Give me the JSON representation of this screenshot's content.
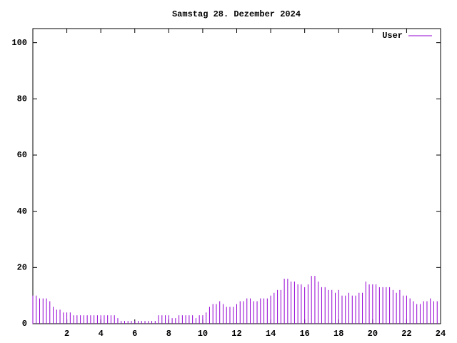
{
  "chart_data": {
    "type": "impulses",
    "title": "Samstag 28. Dezember 2024",
    "x": [
      0,
      0.2,
      0.4,
      0.6,
      0.8,
      1,
      1.2,
      1.4,
      1.6,
      1.8,
      2,
      2.2,
      2.4,
      2.6,
      2.8,
      3,
      3.2,
      3.4,
      3.6,
      3.8,
      4,
      4.2,
      4.4,
      4.6,
      4.8,
      5,
      5.2,
      5.4,
      5.6,
      5.8,
      6,
      6.2,
      6.4,
      6.6,
      6.8,
      7,
      7.2,
      7.4,
      7.6,
      7.8,
      8,
      8.2,
      8.4,
      8.6,
      8.8,
      9,
      9.2,
      9.4,
      9.6,
      9.8,
      10,
      10.2,
      10.4,
      10.6,
      10.8,
      11,
      11.2,
      11.4,
      11.6,
      11.8,
      12,
      12.2,
      12.4,
      12.6,
      12.8,
      13,
      13.2,
      13.4,
      13.6,
      13.8,
      14,
      14.2,
      14.4,
      14.6,
      14.8,
      15,
      15.2,
      15.4,
      15.6,
      15.8,
      16,
      16.2,
      16.4,
      16.6,
      16.8,
      17,
      17.2,
      17.4,
      17.6,
      17.8,
      18,
      18.2,
      18.4,
      18.6,
      18.8,
      19,
      19.2,
      19.4,
      19.6,
      19.8,
      20,
      20.2,
      20.4,
      20.6,
      20.8,
      21,
      21.2,
      21.4,
      21.6,
      21.8,
      22,
      22.2,
      22.4,
      22.6,
      22.8,
      23,
      23.2,
      23.4,
      23.6,
      23.8
    ],
    "series": [
      {
        "name": "User",
        "color": "#9400d3",
        "values": [
          10,
          10,
          9,
          9,
          9,
          8,
          6,
          5,
          5,
          4,
          4,
          4,
          3,
          3,
          3,
          3,
          3,
          3,
          3,
          3,
          3,
          3,
          3,
          3,
          3,
          2,
          1,
          1,
          1,
          1,
          1,
          1,
          1,
          1,
          1,
          1,
          1,
          3,
          3,
          3,
          3,
          2,
          2,
          3,
          3,
          3,
          3,
          3,
          2,
          3,
          3,
          4,
          6,
          7,
          7,
          8,
          7,
          6,
          6,
          6,
          7,
          8,
          8,
          9,
          9,
          8,
          8,
          9,
          9,
          9,
          10,
          11,
          12,
          12,
          16,
          16,
          15,
          15,
          14,
          14,
          13,
          14,
          17,
          17,
          15,
          13,
          13,
          12,
          12,
          11,
          12,
          10,
          10,
          11,
          10,
          10,
          11,
          11,
          15,
          14,
          14,
          14,
          13,
          13,
          13,
          13,
          12,
          11,
          12,
          10,
          10,
          9,
          8,
          7,
          7,
          8,
          8,
          9,
          8,
          8
        ]
      }
    ],
    "xlim": [
      0,
      24
    ],
    "xticks": [
      2,
      4,
      6,
      8,
      10,
      12,
      14,
      16,
      18,
      20,
      22,
      24
    ],
    "ylim": [
      0,
      105
    ],
    "yticks": [
      0,
      20,
      40,
      60,
      80,
      100
    ],
    "legend": "top-right"
  }
}
